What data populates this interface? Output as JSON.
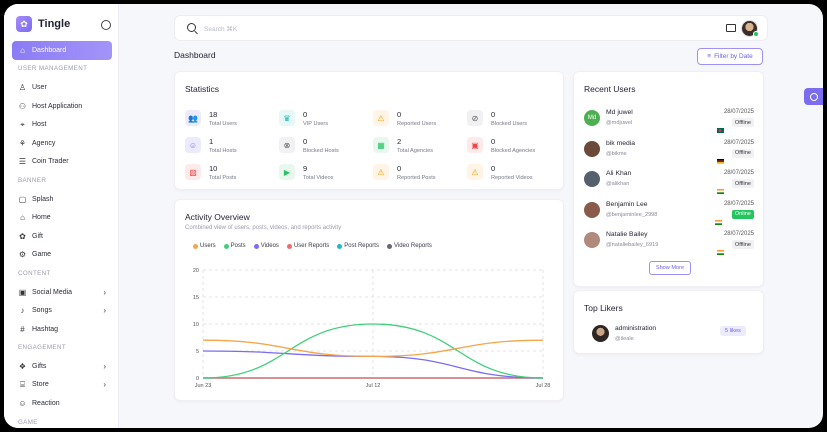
{
  "app": {
    "name": "Tingle"
  },
  "sidebar": {
    "items": [
      {
        "type": "item",
        "label": "Dashboard",
        "icon": "home-icon",
        "active": true
      },
      {
        "type": "section",
        "label": "USER MANAGEMENT"
      },
      {
        "type": "item",
        "label": "User",
        "icon": "user-icon"
      },
      {
        "type": "item",
        "label": "Host Application",
        "icon": "user-plus-icon"
      },
      {
        "type": "item",
        "label": "Host",
        "icon": "host-icon"
      },
      {
        "type": "item",
        "label": "Agency",
        "icon": "agency-icon"
      },
      {
        "type": "item",
        "label": "Coin Trader",
        "icon": "coin-icon"
      },
      {
        "type": "section",
        "label": "BANNER"
      },
      {
        "type": "item",
        "label": "Splash",
        "icon": "image-icon"
      },
      {
        "type": "item",
        "label": "Home",
        "icon": "home-banner-icon"
      },
      {
        "type": "item",
        "label": "Gift",
        "icon": "gift-icon"
      },
      {
        "type": "item",
        "label": "Game",
        "icon": "game-icon"
      },
      {
        "type": "section",
        "label": "CONTENT"
      },
      {
        "type": "item",
        "label": "Social Media",
        "icon": "social-icon",
        "chevron": true
      },
      {
        "type": "item",
        "label": "Songs",
        "icon": "music-icon",
        "chevron": true
      },
      {
        "type": "item",
        "label": "Hashtag",
        "icon": "hashtag-icon"
      },
      {
        "type": "section",
        "label": "ENGAGEMENT"
      },
      {
        "type": "item",
        "label": "Gifts",
        "icon": "gifts-icon",
        "chevron": true
      },
      {
        "type": "item",
        "label": "Store",
        "icon": "store-icon",
        "chevron": true
      },
      {
        "type": "item",
        "label": "Reaction",
        "icon": "reaction-icon"
      },
      {
        "type": "section",
        "label": "GAME"
      }
    ]
  },
  "header": {
    "search_placeholder": "Search ⌘K"
  },
  "page": {
    "title": "Dashboard",
    "filter_label": "Filter by Date"
  },
  "statistics": {
    "title": "Statistics",
    "items": [
      {
        "value": "18",
        "label": "Total Users",
        "color": "#ecebfd",
        "fg": "#7c6cf0",
        "icon": "users-icon",
        "glyph": "👥"
      },
      {
        "value": "0",
        "label": "VIP Users",
        "color": "#e6f7f7",
        "fg": "#14b8a6",
        "icon": "crown-icon",
        "glyph": "♛"
      },
      {
        "value": "0",
        "label": "Reported Users",
        "color": "#fff4e5",
        "fg": "#f59e0b",
        "icon": "warning-icon",
        "glyph": "⚠"
      },
      {
        "value": "0",
        "label": "Blocked Users",
        "color": "#f1f1f4",
        "fg": "#555555",
        "icon": "block-icon",
        "glyph": "⊘"
      },
      {
        "value": "1",
        "label": "Total Hosts",
        "color": "#ecebfd",
        "fg": "#7c6cf0",
        "icon": "host-stat-icon",
        "glyph": "☺"
      },
      {
        "value": "0",
        "label": "Blocked Hosts",
        "color": "#f1f1f4",
        "fg": "#555555",
        "icon": "blocked-host-icon",
        "glyph": "⊗"
      },
      {
        "value": "2",
        "label": "Total Agencies",
        "color": "#e8f8ee",
        "fg": "#22c55e",
        "icon": "agency-stat-icon",
        "glyph": "▦"
      },
      {
        "value": "0",
        "label": "Blocked Agencies",
        "color": "#fdeaea",
        "fg": "#ef4444",
        "icon": "blocked-agency-icon",
        "glyph": "▣"
      },
      {
        "value": "10",
        "label": "Total Posts",
        "color": "#fdeaea",
        "fg": "#ef4444",
        "icon": "post-icon",
        "glyph": "▨"
      },
      {
        "value": "9",
        "label": "Total Videos",
        "color": "#e8f8ee",
        "fg": "#22c55e",
        "icon": "video-icon",
        "glyph": "▶"
      },
      {
        "value": "0",
        "label": "Reported Posts",
        "color": "#fff4e5",
        "fg": "#f59e0b",
        "icon": "warning-post-icon",
        "glyph": "⚠"
      },
      {
        "value": "0",
        "label": "Reported Videos",
        "color": "#fff4e5",
        "fg": "#f59e0b",
        "icon": "warning-video-icon",
        "glyph": "⚠"
      }
    ]
  },
  "activity": {
    "title": "Activity Overview",
    "subtitle": "Combined view of users, posts, videos, and reports activity"
  },
  "chart_data": {
    "type": "line",
    "x": [
      "Jun 23",
      "Jul 12",
      "Jul 28"
    ],
    "ylim": [
      0,
      20
    ],
    "yticks": [
      "0",
      "5",
      "10",
      "15",
      "20"
    ],
    "grid": true,
    "legend_position": "top-left",
    "series": [
      {
        "name": "Users",
        "color": "#f5a54a",
        "values": [
          7,
          4,
          7
        ]
      },
      {
        "name": "Posts",
        "color": "#3fcf7a",
        "values": [
          0,
          10,
          0
        ]
      },
      {
        "name": "Videos",
        "color": "#7c6cf0",
        "values": [
          5,
          4,
          0
        ]
      },
      {
        "name": "User Reports",
        "color": "#ef6b6b",
        "values": [
          0,
          0,
          0
        ]
      },
      {
        "name": "Post Reports",
        "color": "#22b8c8",
        "values": [
          0,
          0,
          0
        ]
      },
      {
        "name": "Video Reports",
        "color": "#666677",
        "values": [
          0,
          0,
          0
        ]
      }
    ]
  },
  "recent_users": {
    "title": "Recent Users",
    "show_more": "Show More",
    "users": [
      {
        "name": "Md juwel",
        "handle": "@mdjuwel",
        "date": "28/07/2025",
        "status": "Offline",
        "online": false,
        "avatar": "#4caf50",
        "initials": "Md",
        "flag": "bangladesh-flag-icon"
      },
      {
        "name": "bik media",
        "handle": "@bikme",
        "date": "28/07/2025",
        "status": "Offline",
        "online": false,
        "avatar": "#6b4a3a",
        "initials": "",
        "flag": "germany-flag-icon"
      },
      {
        "name": "Ali Khan",
        "handle": "@alikhan",
        "date": "28/07/2025",
        "status": "Offline",
        "online": false,
        "avatar": "#55606e",
        "initials": "",
        "flag": "india-flag-icon"
      },
      {
        "name": "Benjamin Lee",
        "handle": "@benjaminlee_2998",
        "date": "28/07/2025",
        "status": "Online",
        "online": true,
        "avatar": "#8a5a4a",
        "initials": "",
        "flag": "india-flag-icon"
      },
      {
        "name": "Natalie Bailey",
        "handle": "@nataliebailey_6919",
        "date": "28/07/2025",
        "status": "Offline",
        "online": false,
        "avatar": "#b08a7a",
        "initials": "",
        "flag": "india-flag-icon"
      }
    ]
  },
  "top_likers": {
    "title": "Top Likers",
    "items": [
      {
        "name": "administration",
        "handle": "@ileale",
        "badge": "5 likes"
      }
    ]
  }
}
